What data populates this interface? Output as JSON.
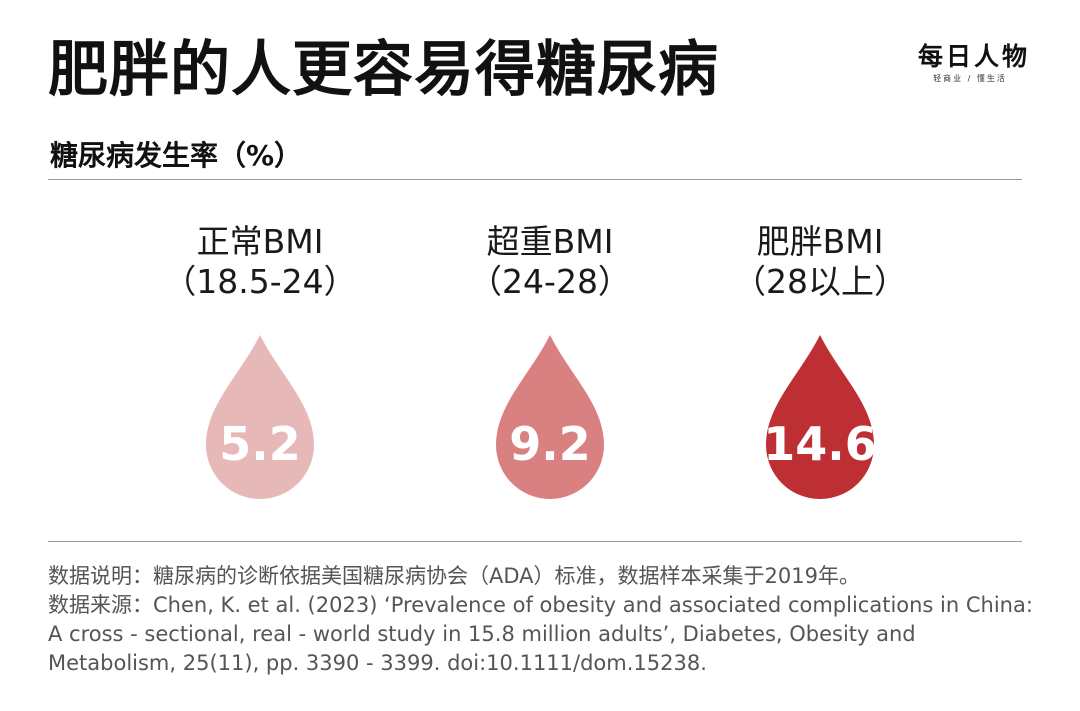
{
  "header": {
    "title": "肥胖的人更容易得糖尿病",
    "brand_name": "每日人物",
    "brand_tagline": "轻商业 / 懂生活"
  },
  "chart_data": {
    "type": "bar",
    "title": "肥胖的人更容易得糖尿病",
    "subtitle": "糖尿病发生率（%）",
    "categories": [
      {
        "name": "正常BMI",
        "range": "（18.5-24）"
      },
      {
        "name": "超重BMI",
        "range": "（24-28）"
      },
      {
        "name": "肥胖BMI",
        "range": "（28以上）"
      }
    ],
    "values": [
      5.2,
      9.2,
      14.6
    ],
    "value_labels": [
      "5.2",
      "9.2",
      "14.6"
    ],
    "colors": [
      "#e7b8b8",
      "#d98080",
      "#be2f34"
    ],
    "ylabel": "糖尿病发生率（%）"
  },
  "footnotes": {
    "note": "数据说明：糖尿病的诊断依据美国糖尿病协会（ADA）标准，数据样本采集于2019年。",
    "source": "数据来源：Chen, K. et al. (2023) ‘Prevalence of obesity and associated complications in China: A cross - sectional, real - world study in 15.8 million adults’, Diabetes, Obesity and Metabolism, 25(11), pp. 3390 - 3399. doi:10.1111/dom.15238."
  }
}
